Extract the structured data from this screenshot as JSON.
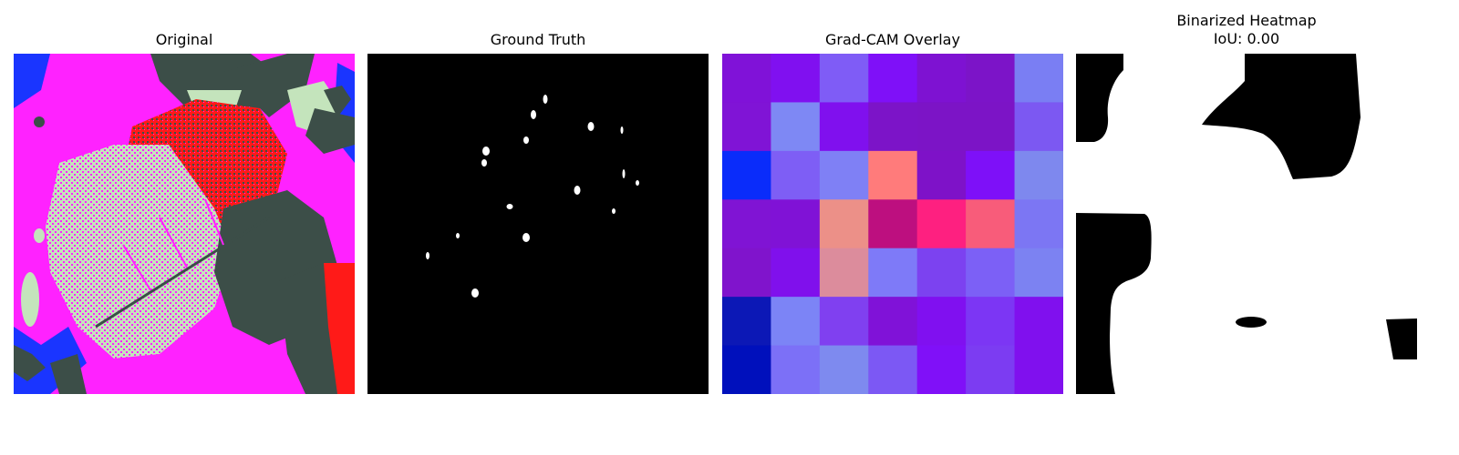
{
  "panels": [
    {
      "title": "Original",
      "image": "leaf-photo"
    },
    {
      "title": "Ground Truth",
      "image": "binary-mask"
    },
    {
      "title": "Grad-CAM Overlay",
      "image": "heatmap-overlay"
    },
    {
      "title": "Binarized Heatmap",
      "subtitle": "IoU: 0.00",
      "image": "binary-heatmap"
    }
  ],
  "gradcam_grid": [
    [
      "#8012d8",
      "#8010f0",
      "#7f5cf6",
      "#7f10f8",
      "#7e12d2",
      "#7c14c8",
      "#7a7ef3"
    ],
    [
      "#8014d6",
      "#7e88f4",
      "#8010ee",
      "#7c14c8",
      "#7c14c6",
      "#7c14c6",
      "#7c58f2"
    ],
    [
      "#0a2cfa",
      "#7e5ef5",
      "#7f80f5",
      "#ff7b7b",
      "#7e12c8",
      "#7e10f8",
      "#7e88ee"
    ],
    [
      "#8014d4",
      "#8012d6",
      "#ec9088",
      "#bd0f7f",
      "#fe2080",
      "#f85c7a",
      "#7c76f3"
    ],
    [
      "#8014cc",
      "#8010ec",
      "#dc8c9c",
      "#7e7af8",
      "#7c42f0",
      "#7c60f6",
      "#7c82f2"
    ],
    [
      "#0c18b6",
      "#7c84f6",
      "#8040f0",
      "#8012d8",
      "#8010f0",
      "#7c36f4",
      "#8010ee"
    ],
    [
      "#0010bc",
      "#7c70f7",
      "#7e8aef",
      "#7c58f4",
      "#8010f8",
      "#7c3cf2",
      "#8010ee"
    ]
  ],
  "colors": {
    "magenta": "#ff22ff",
    "leaf": "#c4e4bc",
    "shadow": "#3c4e48",
    "red": "#ff1a18",
    "blue": "#1a35ff",
    "mask": "#000000"
  }
}
